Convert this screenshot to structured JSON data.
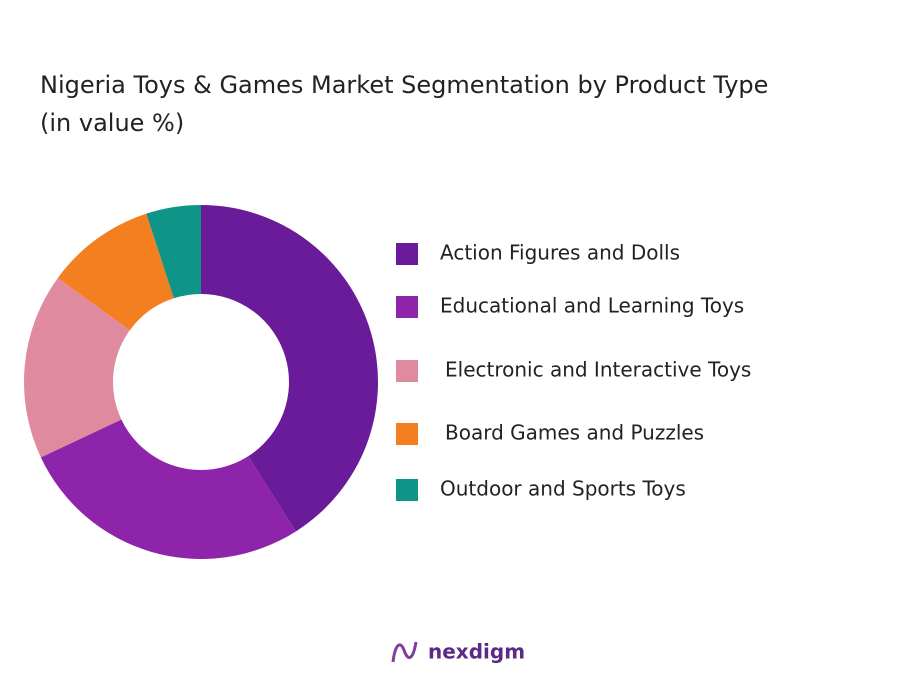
{
  "chart_data": {
    "type": "donut",
    "title": "Nigeria Toys & Games Market Segmentation by Product Type",
    "subtitle": "(in value %)",
    "categories": [
      "Action Figures and Dolls",
      "Educational and Learning Toys",
      "Electronic and Interactive Toys",
      "Board Games and Puzzles",
      "Outdoor and Sports Toys"
    ],
    "values": [
      41,
      27,
      17,
      10,
      5
    ],
    "colors": [
      "#6a1b9a",
      "#8e24aa",
      "#e08a9f",
      "#f47f20",
      "#0f9488"
    ],
    "legend": "right"
  },
  "brand": "nexdigm"
}
